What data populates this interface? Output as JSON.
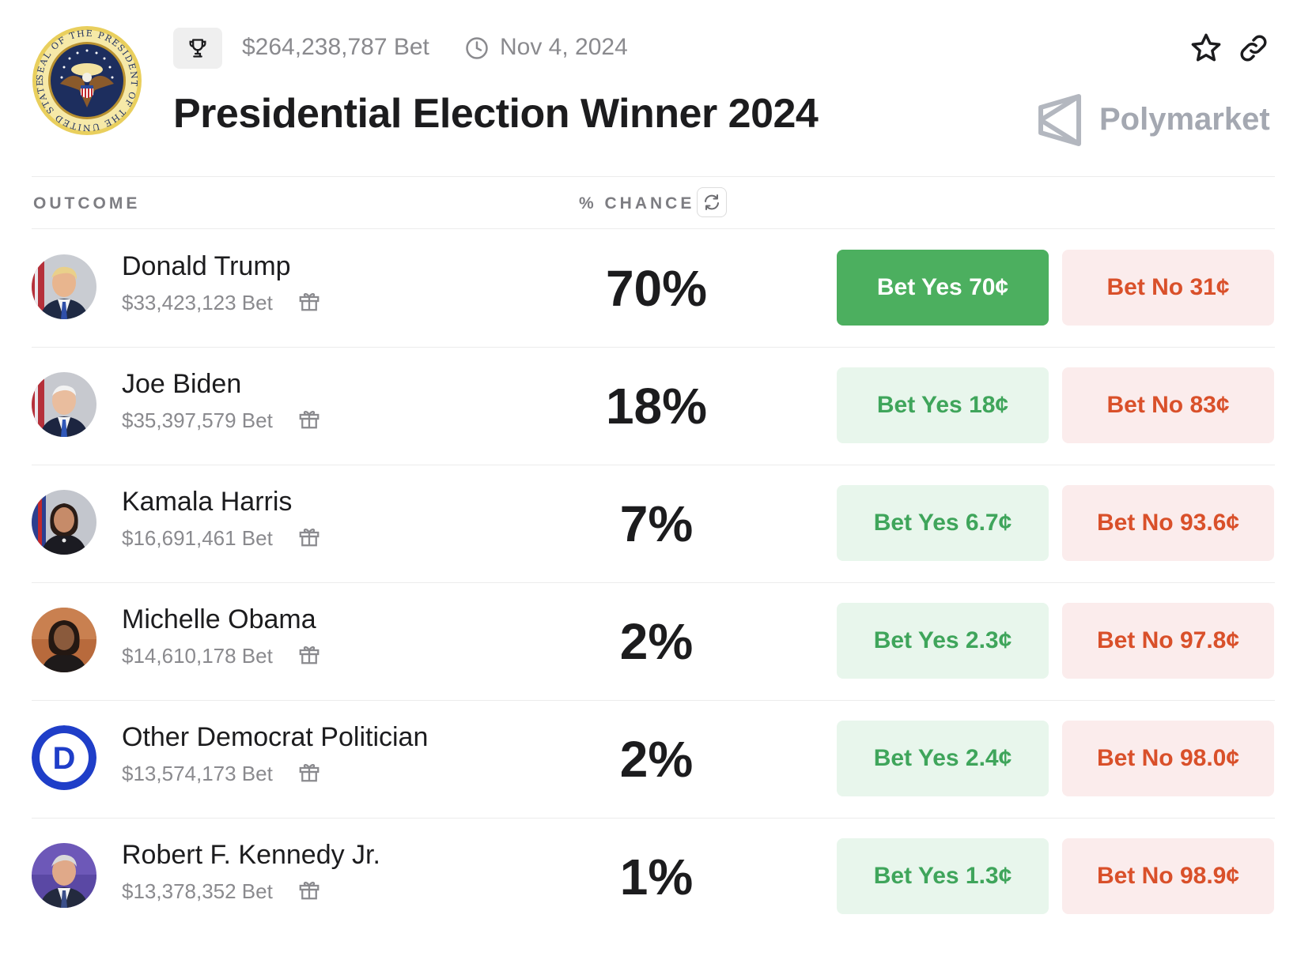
{
  "header": {
    "total_volume": "$264,238,787 Bet",
    "end_date": "Nov 4, 2024",
    "title": "Presidential Election Winner 2024",
    "brand": "Polymarket",
    "seal_text": "SEAL OF THE PRESIDENT OF THE UNITED STATES"
  },
  "columns": {
    "outcome": "OUTCOME",
    "chance": "% CHANCE"
  },
  "outcomes": [
    {
      "name": "Donald Trump",
      "volume": "$33,423,123 Bet",
      "chance": "70%",
      "yes": "Bet Yes 70¢",
      "no": "Bet No 31¢"
    },
    {
      "name": "Joe Biden",
      "volume": "$35,397,579 Bet",
      "chance": "18%",
      "yes": "Bet Yes 18¢",
      "no": "Bet No 83¢"
    },
    {
      "name": "Kamala Harris",
      "volume": "$16,691,461 Bet",
      "chance": "7%",
      "yes": "Bet Yes 6.7¢",
      "no": "Bet No 93.6¢"
    },
    {
      "name": "Michelle Obama",
      "volume": "$14,610,178 Bet",
      "chance": "2%",
      "yes": "Bet Yes 2.3¢",
      "no": "Bet No 97.8¢"
    },
    {
      "name": "Other Democrat Politician",
      "volume": "$13,574,173 Bet",
      "chance": "2%",
      "yes": "Bet Yes 2.4¢",
      "no": "Bet No 98.0¢",
      "logo_letter": "D"
    },
    {
      "name": "Robert F. Kennedy Jr.",
      "volume": "$13,378,352 Bet",
      "chance": "1%",
      "yes": "Bet Yes 1.3¢",
      "no": "Bet No 98.9¢"
    }
  ],
  "colors": {
    "yes_active_bg": "#4caf5f",
    "yes_bg": "#e8f6ec",
    "yes_text": "#3fa55b",
    "no_bg": "#fbecec",
    "no_text": "#d9502a",
    "democrat_blue": "#1f3ec8"
  },
  "icons": [
    "trophy-icon",
    "clock-icon",
    "star-icon",
    "link-icon",
    "refresh-icon",
    "gift-icon",
    "polymarket-logo-icon"
  ]
}
